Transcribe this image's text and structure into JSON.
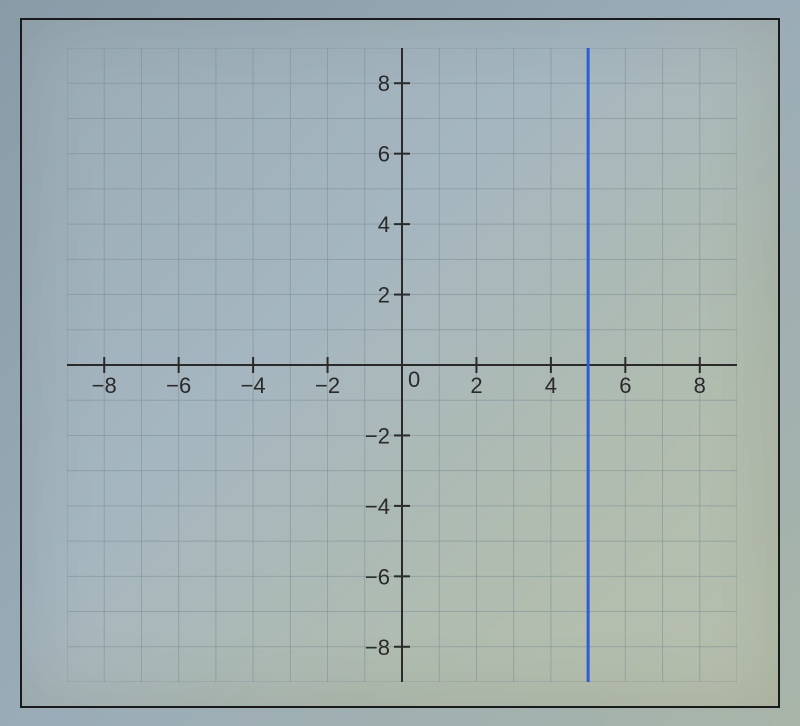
{
  "chart": {
    "type": "cartesian-plot",
    "background_gradient": [
      "#9aabb5",
      "#a5b6c0",
      "#b0bcb0",
      "#b8c0ac"
    ],
    "border_color": "#1a1a1a",
    "grid": {
      "xmin": -9,
      "xmax": 9,
      "ymin": -9,
      "ymax": 9,
      "step": 1,
      "minor_line_color": "#7a8a92",
      "minor_line_opacity": 0.5,
      "minor_line_width": 1
    },
    "axes": {
      "color": "#2a2a2a",
      "line_width": 2,
      "x_range": [
        -9,
        9
      ],
      "y_range": [
        -9,
        9
      ],
      "tick_length": 8
    },
    "x_ticks": {
      "positions": [
        -8,
        -6,
        -4,
        -2,
        2,
        4,
        6,
        8
      ],
      "labels": [
        "-8",
        "-6",
        "-4",
        "-2",
        "2",
        "4",
        "6",
        "8"
      ],
      "font_size": 22,
      "label_color": "#2a2a2a"
    },
    "y_ticks": {
      "positions": [
        -8,
        -6,
        -4,
        -2,
        2,
        4,
        6,
        8
      ],
      "labels": [
        "-8",
        "-6",
        "-4",
        "-2",
        "2",
        "4",
        "6",
        "8"
      ],
      "font_size": 22,
      "label_color": "#2a2a2a"
    },
    "origin_label": {
      "text": "0",
      "x_offset": 6,
      "y_offset": 22,
      "font_size": 22
    },
    "plotted_line": {
      "type": "vertical",
      "x_value": 5,
      "color": "#2d5cd6",
      "width": 3,
      "y_from": -9,
      "y_to": 9
    }
  }
}
